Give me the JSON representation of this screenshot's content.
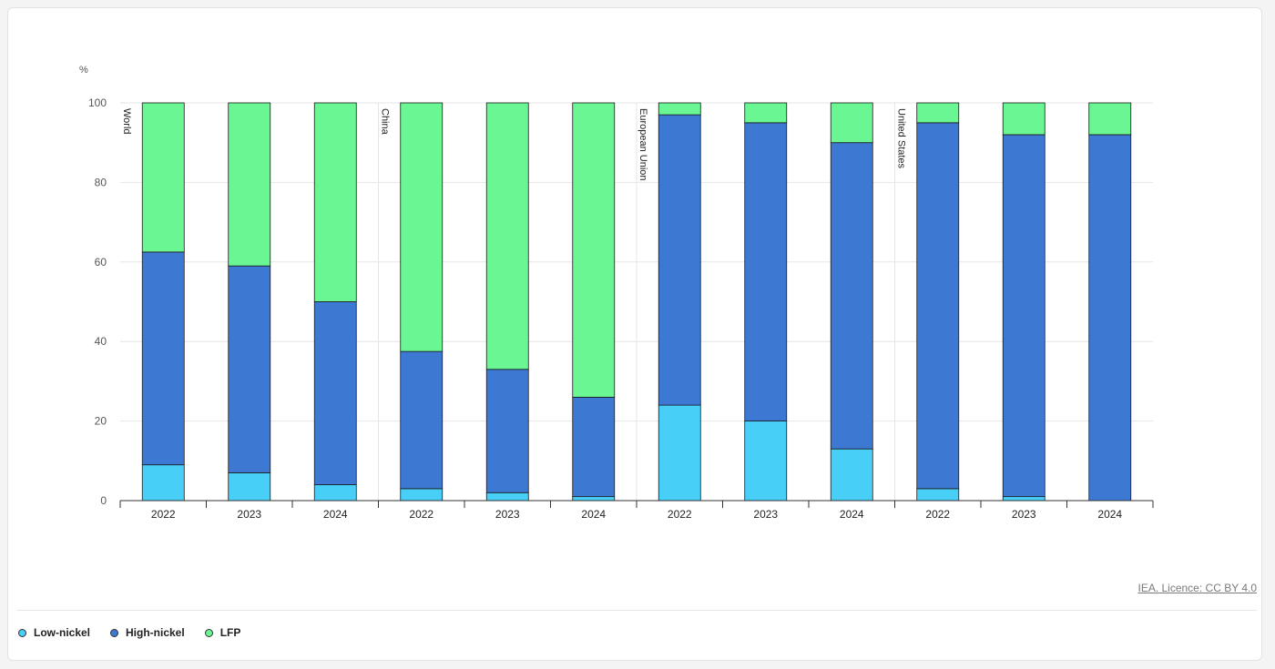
{
  "chart_data": {
    "type": "bar",
    "stacked": true,
    "ylabel": "%",
    "ylim": [
      0,
      100
    ],
    "yticks": [
      0,
      20,
      40,
      60,
      80,
      100
    ],
    "grid": true,
    "legend_position": "bottom-left",
    "groups": [
      {
        "name": "World",
        "categories": [
          "2022",
          "2023",
          "2024"
        ]
      },
      {
        "name": "China",
        "categories": [
          "2022",
          "2023",
          "2024"
        ]
      },
      {
        "name": "European Union",
        "categories": [
          "2022",
          "2023",
          "2024"
        ]
      },
      {
        "name": "United States",
        "categories": [
          "2022",
          "2023",
          "2024"
        ]
      }
    ],
    "categories": [
      "2022",
      "2023",
      "2024",
      "2022",
      "2023",
      "2024",
      "2022",
      "2023",
      "2024",
      "2022",
      "2023",
      "2024"
    ],
    "series": [
      {
        "name": "Low-nickel",
        "color": "#48cff8",
        "values": [
          9,
          7,
          4,
          3,
          2,
          1,
          24,
          20,
          13,
          3,
          1,
          0
        ]
      },
      {
        "name": "High-nickel",
        "color": "#3d79d3",
        "values": [
          53.5,
          52,
          46,
          34.5,
          31,
          25,
          73,
          75,
          77,
          92,
          91,
          92
        ]
      },
      {
        "name": "LFP",
        "color": "#6af692",
        "values": [
          37.5,
          41,
          50,
          62.5,
          67,
          74,
          3,
          5,
          10,
          5,
          8,
          8
        ]
      }
    ]
  },
  "source": {
    "licence": "IEA. Licence: CC BY 4.0"
  },
  "legend": [
    {
      "label": "Low-nickel",
      "color": "#48cff8"
    },
    {
      "label": "High-nickel",
      "color": "#3d79d3"
    },
    {
      "label": "LFP",
      "color": "#6af692"
    }
  ]
}
